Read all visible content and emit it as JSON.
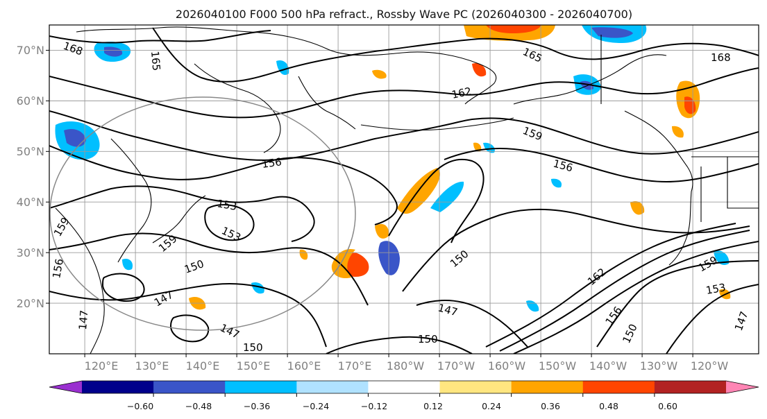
{
  "title": "2026040100 F000 500 hPa refract., Rossby Wave PC (2026040300 - 2026040700)",
  "map": {
    "lat_labels": [
      "70°N",
      "60°N",
      "50°N",
      "40°N",
      "30°N",
      "20°N"
    ],
    "lon_labels": [
      "120°E",
      "130°E",
      "140°E",
      "150°E",
      "160°E",
      "170°E",
      "180°W",
      "170°W",
      "160°W",
      "150°W",
      "140°W",
      "130°W",
      "120°W"
    ],
    "contour_labels": [
      "168",
      "165",
      "165",
      "168",
      "162",
      "159",
      "156",
      "156",
      "153",
      "153",
      "159",
      "159",
      "156",
      "150",
      "150",
      "147",
      "147",
      "147",
      "150",
      "147",
      "150",
      "162",
      "156",
      "150",
      "159",
      "153",
      "147"
    ]
  },
  "colorbar": {
    "ticks": [
      "−0.60",
      "−0.48",
      "−0.36",
      "−0.24",
      "−0.12",
      "0.12",
      "0.24",
      "0.36",
      "0.48",
      "0.60"
    ],
    "colors": [
      "#9a30d0",
      "#00008b",
      "#3a55c8",
      "#00bfff",
      "#b0e2ff",
      "#ffffff",
      "#ffe680",
      "#ffa500",
      "#ff4500",
      "#b22222",
      "#ff85b4"
    ]
  },
  "chart_data": {
    "type": "heatmap",
    "title": "2026040100 F000 500 hPa refract., Rossby Wave PC (2026040300 - 2026040700)",
    "lat_ticks": [
      70,
      60,
      50,
      40,
      30,
      20
    ],
    "lon_ticks": [
      120,
      130,
      140,
      150,
      160,
      170,
      180,
      -170,
      -160,
      -150,
      -140,
      -130,
      -120
    ],
    "lat_range": [
      10,
      75
    ],
    "lon_range": [
      113,
      253
    ],
    "colorbar_ticks": [
      -0.6,
      -0.48,
      -0.36,
      -0.24,
      -0.12,
      0.12,
      0.24,
      0.36,
      0.48,
      0.6
    ],
    "contour_levels": [
      147,
      150,
      153,
      156,
      159,
      162,
      165,
      168
    ]
  }
}
